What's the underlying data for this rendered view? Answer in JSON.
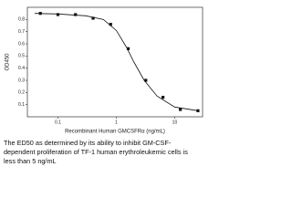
{
  "chart_data": {
    "type": "scatter",
    "xlabel": "Recombinant Human GMCSFRα  (ng/mL)",
    "ylabel": "OD450",
    "log_x": true,
    "xlim": [
      0.03,
      30
    ],
    "xticks": [
      0.1,
      1,
      10
    ],
    "ylim": [
      0,
      0.9
    ],
    "yticks": [
      0.1,
      0.2,
      0.3,
      0.4,
      0.5,
      0.6,
      0.7,
      0.8
    ],
    "color": "#111111",
    "x": [
      0.05,
      0.1,
      0.2,
      0.4,
      0.8,
      1.6,
      3.2,
      6.3,
      12.5,
      25
    ],
    "values": [
      0.85,
      0.84,
      0.84,
      0.81,
      0.76,
      0.56,
      0.3,
      0.16,
      0.06,
      0.05
    ],
    "fit": {
      "x": [
        0.04,
        0.1,
        0.3,
        0.6,
        1,
        1.5,
        2,
        3,
        5,
        10,
        25
      ],
      "values": [
        0.85,
        0.845,
        0.83,
        0.8,
        0.71,
        0.57,
        0.45,
        0.3,
        0.17,
        0.08,
        0.05
      ]
    },
    "caption": [
      "The ED50 as determined by its ability to inhibit GM-CSF-",
      "dependent proliferation of TF-1 human erythroleukemic cells is",
      "less than 5 ng/mL"
    ]
  }
}
